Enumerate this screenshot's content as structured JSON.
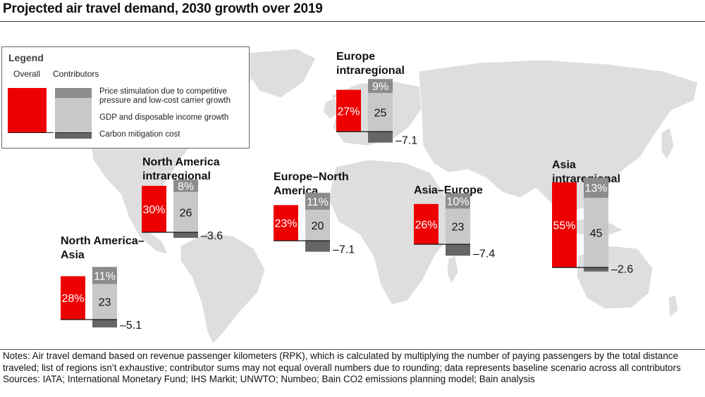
{
  "title": "Projected air travel demand, 2030 growth over 2019",
  "legend": {
    "title": "Legend",
    "overall_label": "Overall",
    "contributors_label": "Contributors",
    "items": [
      {
        "text": "Price stimulation due to competitive pressure and low-cost carrier growth",
        "color": "#8c8c8c"
      },
      {
        "text": "GDP and disposable income growth",
        "color": "#c8c8c8"
      },
      {
        "text": "Carbon mitigation cost",
        "color": "#666666"
      }
    ],
    "overall_color": "#ee0000"
  },
  "regions": {
    "na_asia": "North America–Asia",
    "na_intra": "North America intraregional",
    "eu_na": "Europe–North America",
    "eu_intra": "Europe intraregional",
    "asia_eu": "Asia–Europe",
    "asia_intra": "Asia intraregional"
  },
  "chart_data": {
    "type": "bar",
    "title": "Projected air travel demand, 2030 growth over 2019",
    "unit": "%",
    "series_names": [
      "Overall",
      "Price stimulation due to competitive pressure and low-cost carrier growth",
      "GDP and disposable income growth",
      "Carbon mitigation cost"
    ],
    "groups": [
      {
        "region": "North America–Asia",
        "overall": 28,
        "price_stimulation": 11,
        "gdp_income": 23,
        "carbon_cost": -5.1,
        "labels": {
          "overall": "28%",
          "price": "11%",
          "gdp": "23",
          "carbon": "–5.1"
        }
      },
      {
        "region": "North America intraregional",
        "overall": 30,
        "price_stimulation": 8,
        "gdp_income": 26,
        "carbon_cost": -3.6,
        "labels": {
          "overall": "30%",
          "price": "8%",
          "gdp": "26",
          "carbon": "–3.6"
        }
      },
      {
        "region": "Europe–North America",
        "overall": 23,
        "price_stimulation": 11,
        "gdp_income": 20,
        "carbon_cost": -7.1,
        "labels": {
          "overall": "23%",
          "price": "11%",
          "gdp": "20",
          "carbon": "–7.1"
        }
      },
      {
        "region": "Europe intraregional",
        "overall": 27,
        "price_stimulation": 9,
        "gdp_income": 25,
        "carbon_cost": -7.1,
        "labels": {
          "overall": "27%",
          "price": "9%",
          "gdp": "25",
          "carbon": "–7.1"
        }
      },
      {
        "region": "Asia–Europe",
        "overall": 26,
        "price_stimulation": 10,
        "gdp_income": 23,
        "carbon_cost": -7.4,
        "labels": {
          "overall": "26%",
          "price": "10%",
          "gdp": "23",
          "carbon": "–7.4"
        }
      },
      {
        "region": "Asia intraregional",
        "overall": 55,
        "price_stimulation": 13,
        "gdp_income": 45,
        "carbon_cost": -2.6,
        "labels": {
          "overall": "55%",
          "price": "13%",
          "gdp": "45",
          "carbon": "–2.6"
        }
      }
    ],
    "colors": {
      "overall": "#ee0000",
      "price_stimulation": "#8c8c8c",
      "gdp_income": "#c8c8c8",
      "carbon_cost": "#666666",
      "map": "#dedede"
    }
  },
  "notes": {
    "line1": "Notes: Air travel demand based on revenue passenger kilometers (RPK), which is calculated by multiplying the number of paying passengers by the total distance traveled; list of regions isn’t exhaustive; contributor sums may not equal overall numbers due to rounding; data represents baseline scenario across all contributors",
    "line2": "Sources: IATA; International Monetary Fund; IHS Markit; UNWTO; Numbeo; Bain CO2 emissions planning model; Bain analysis"
  }
}
